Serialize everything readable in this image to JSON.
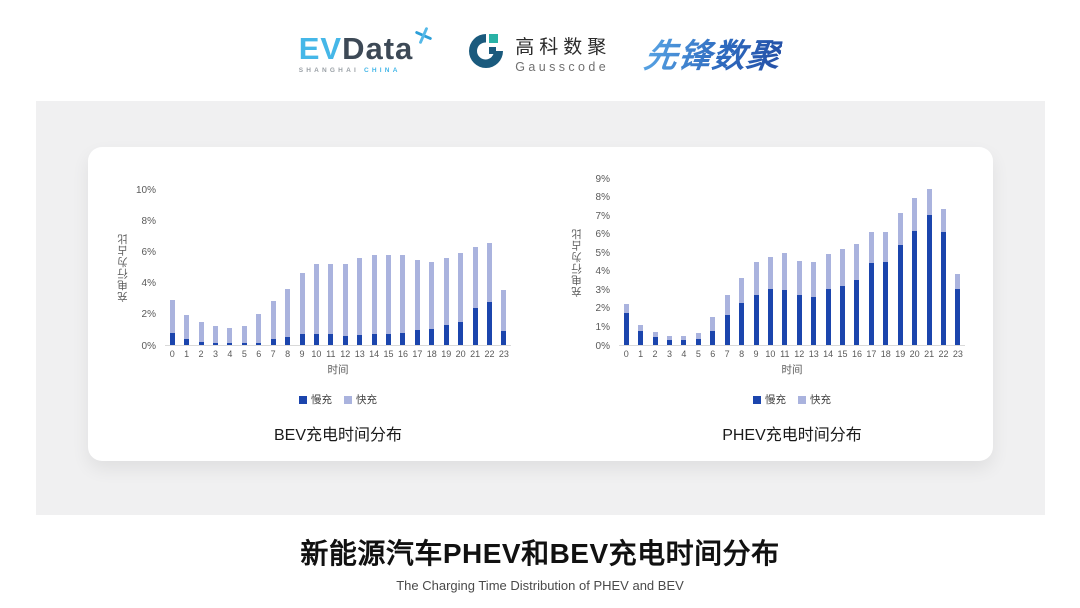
{
  "header": {
    "evdata": {
      "ev": "EV",
      "data": "Data",
      "sub_left": "SHANGHAI",
      "sub_right": "CHINA"
    },
    "gausscode": {
      "cn": "高科数聚",
      "en": "Gausscode"
    },
    "xianfeng": {
      "text": "先锋数聚"
    }
  },
  "footer": {
    "title": "新能源汽车PHEV和BEV充电时间分布",
    "subtitle": "The Charging Time Distribution of PHEV and BEV"
  },
  "colors": {
    "slow_charge": "#1b45ad",
    "fast_charge": "#aab3de",
    "axis_line": "#d9d9d9",
    "tick_text": "#595959",
    "panel_grey": "#f0f0f1"
  },
  "chart_data": [
    {
      "id": "bev",
      "type": "bar",
      "stacked": true,
      "title": "BEV充电时间分布",
      "ylabel": "充电行为占比",
      "xlabel": "时间",
      "ylim": [
        0,
        10
      ],
      "ytick_step": 2,
      "grid": false,
      "legend_position": "bottom",
      "categories": [
        0,
        1,
        2,
        3,
        4,
        5,
        6,
        7,
        8,
        9,
        10,
        11,
        12,
        13,
        14,
        15,
        16,
        17,
        18,
        19,
        20,
        21,
        22,
        23
      ],
      "series": [
        {
          "name": "慢充",
          "color": "#1b45ad",
          "values": [
            0.8,
            0.4,
            0.2,
            0.1,
            0.1,
            0.1,
            0.15,
            0.4,
            0.5,
            0.7,
            0.7,
            0.7,
            0.6,
            0.65,
            0.7,
            0.7,
            0.8,
            0.95,
            1.05,
            1.3,
            1.5,
            2.4,
            2.75,
            0.9
          ]
        },
        {
          "name": "快充",
          "color": "#aab3de",
          "values": [
            2.1,
            1.5,
            1.3,
            1.1,
            1.0,
            1.1,
            1.85,
            2.4,
            3.1,
            3.9,
            4.5,
            4.5,
            4.6,
            4.95,
            5.1,
            5.1,
            5.0,
            4.5,
            4.25,
            4.3,
            4.4,
            3.9,
            3.8,
            2.65
          ]
        }
      ]
    },
    {
      "id": "phev",
      "type": "bar",
      "stacked": true,
      "title": "PHEV充电时间分布",
      "ylabel": "充电行为占比",
      "xlabel": "时间",
      "ylim": [
        0,
        9
      ],
      "ytick_step": 1,
      "grid": false,
      "legend_position": "bottom",
      "categories": [
        0,
        1,
        2,
        3,
        4,
        5,
        6,
        7,
        8,
        9,
        10,
        11,
        12,
        13,
        14,
        15,
        16,
        17,
        18,
        19,
        20,
        21,
        22,
        23
      ],
      "series": [
        {
          "name": "慢充",
          "color": "#1b45ad",
          "values": [
            1.75,
            0.75,
            0.45,
            0.25,
            0.25,
            0.3,
            0.75,
            1.6,
            2.25,
            2.7,
            3.0,
            2.95,
            2.7,
            2.6,
            3.0,
            3.2,
            3.5,
            4.4,
            4.5,
            5.4,
            6.15,
            7.0,
            6.1,
            3.0
          ]
        },
        {
          "name": "快充",
          "color": "#aab3de",
          "values": [
            0.45,
            0.35,
            0.25,
            0.25,
            0.25,
            0.35,
            0.75,
            1.1,
            1.35,
            1.75,
            1.75,
            2.0,
            1.85,
            1.85,
            1.9,
            2.0,
            1.95,
            1.7,
            1.6,
            1.7,
            1.75,
            1.4,
            1.25,
            0.85
          ]
        }
      ]
    }
  ]
}
